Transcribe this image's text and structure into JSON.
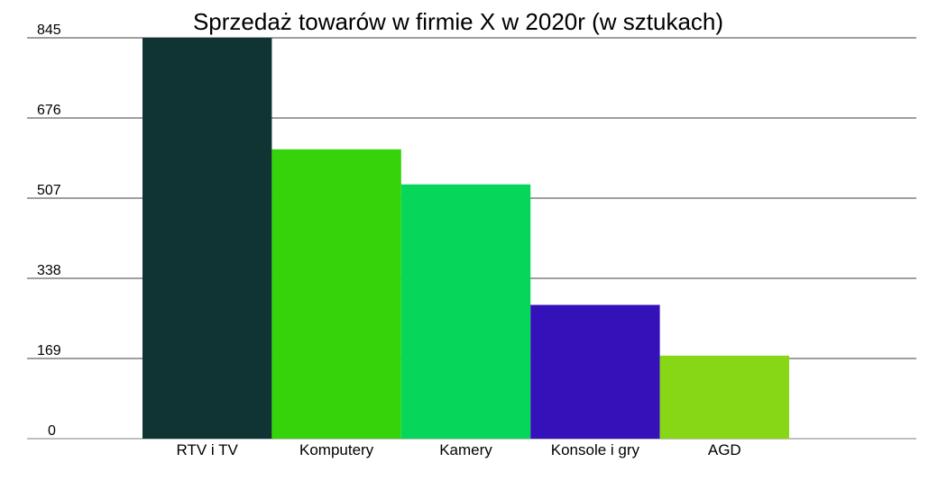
{
  "chart_data": {
    "type": "bar",
    "title": "Sprzedaż towarów w firmie X w 2020r (w sztukach)",
    "xlabel": "",
    "ylabel": "",
    "categories": [
      "RTV i TV",
      "Komputery",
      "Kamery",
      "Konsole i gry",
      "AGD"
    ],
    "values": [
      845,
      610,
      536,
      282,
      175
    ],
    "colors": [
      "#0f3433",
      "#36d30b",
      "#06d75a",
      "#3411b9",
      "#87d716"
    ],
    "y_ticks": [
      "0",
      "169",
      "338",
      "507",
      "676",
      "845"
    ],
    "ylim": [
      0,
      845
    ],
    "grid": true,
    "legend": "none",
    "gridline_color": "#666666",
    "text_color": "#000000"
  }
}
